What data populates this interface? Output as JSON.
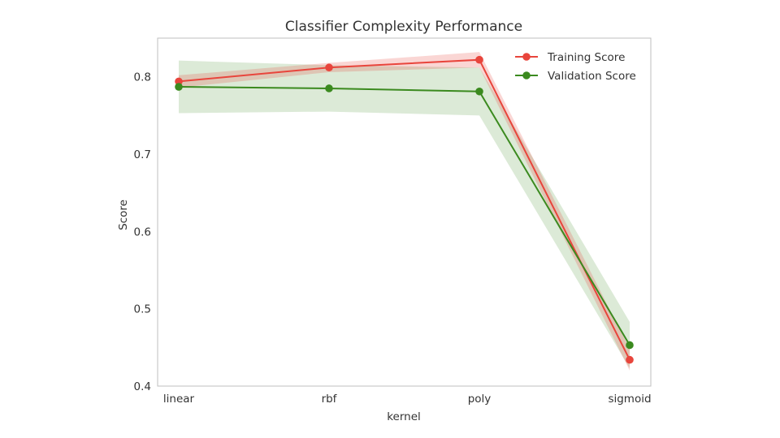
{
  "chart_data": {
    "type": "line",
    "title": "Classifier Complexity Performance",
    "xlabel": "kernel",
    "ylabel": "Score",
    "categories": [
      "linear",
      "rbf",
      "poly",
      "sigmoid"
    ],
    "ylim": [
      0.4,
      0.85
    ],
    "yticks": [
      0.4,
      0.5,
      0.6,
      0.7,
      0.8
    ],
    "ytick_labels": [
      "0.4",
      "0.5",
      "0.6",
      "0.7",
      "0.8"
    ],
    "grid": false,
    "legend_position": "top-right",
    "series": [
      {
        "name": "Training Score",
        "color": "#e8453c",
        "values": [
          0.794,
          0.812,
          0.822,
          0.434
        ],
        "band_lower": [
          0.786,
          0.806,
          0.812,
          0.42
        ],
        "band_upper": [
          0.802,
          0.818,
          0.832,
          0.448
        ]
      },
      {
        "name": "Validation Score",
        "color": "#3b8a1f",
        "values": [
          0.787,
          0.785,
          0.781,
          0.453
        ],
        "band_lower": [
          0.753,
          0.755,
          0.75,
          0.423
        ],
        "band_upper": [
          0.821,
          0.815,
          0.812,
          0.483
        ]
      }
    ]
  }
}
